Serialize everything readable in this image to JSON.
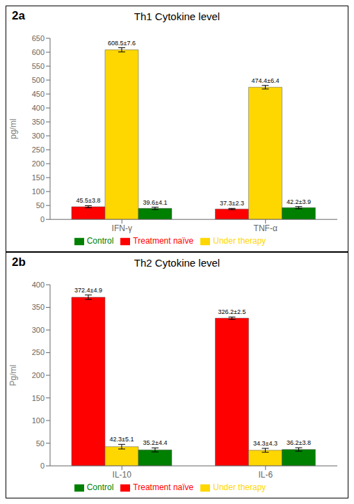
{
  "chart_data": [
    {
      "type": "bar",
      "label": "2a",
      "title": "Th1 Cytokine level",
      "ylabel": "pg/ml",
      "categories": [
        "IFN-γ",
        "TNF-α"
      ],
      "ylim": [
        0,
        650
      ],
      "yticks": [
        0,
        50,
        100,
        150,
        200,
        250,
        300,
        350,
        400,
        450,
        500,
        550,
        600,
        650
      ],
      "grid": false,
      "legend": "bottom",
      "data_labels": true,
      "series": [
        {
          "name": "Treatment naïve",
          "color": "#FF0000",
          "values": [
            45.5,
            37.3
          ],
          "errors": [
            3.8,
            2.3
          ],
          "value_labels": [
            "45.5±3.8",
            "37.3±2.3"
          ]
        },
        {
          "name": "Under therapy",
          "color": "#FFD700",
          "values": [
            608.5,
            474.4
          ],
          "errors": [
            7.6,
            6.4
          ],
          "value_labels": [
            "608.5±7.6",
            "474.4±6.4"
          ]
        },
        {
          "name": "Control",
          "color": "#008000",
          "values": [
            39.6,
            42.2
          ],
          "errors": [
            4.1,
            3.9
          ],
          "value_labels": [
            "39.6±4.1",
            "42.2±3.9"
          ]
        }
      ]
    },
    {
      "type": "bar",
      "label": "2b",
      "title": "Th2 Cytokine level",
      "ylabel": "Pg/ml",
      "categories": [
        "IL-10",
        "IL-6"
      ],
      "ylim": [
        0,
        400
      ],
      "yticks": [
        0,
        50,
        100,
        150,
        200,
        250,
        300,
        350,
        400
      ],
      "grid": false,
      "legend": "bottom",
      "data_labels": true,
      "series": [
        {
          "name": "Treatment naïve",
          "color": "#FF0000",
          "values": [
            372.4,
            326.2
          ],
          "errors": [
            4.9,
            2.5
          ],
          "value_labels": [
            "372.4±4.9",
            "326.2±2.5"
          ]
        },
        {
          "name": "Under therapy",
          "color": "#FFD700",
          "values": [
            42.3,
            34.3
          ],
          "errors": [
            5.1,
            4.3
          ],
          "value_labels": [
            "42.3±5.1",
            "34.3±4.3"
          ]
        },
        {
          "name": "Control",
          "color": "#008000",
          "values": [
            35.2,
            36.2
          ],
          "errors": [
            4.4,
            3.8
          ],
          "value_labels": [
            "35.2±4.4",
            "36.2±3.8"
          ]
        }
      ]
    }
  ]
}
